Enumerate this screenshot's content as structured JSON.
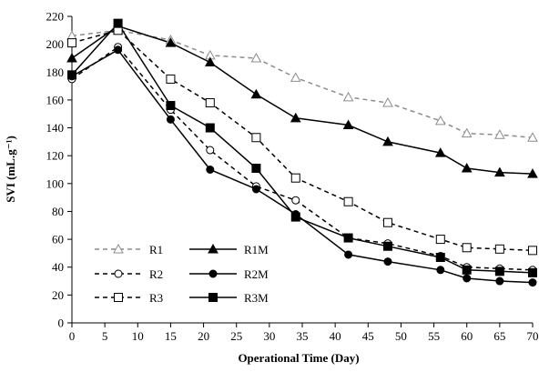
{
  "chart_data": {
    "type": "line",
    "title": "",
    "xlabel": "Operational Time (Day)",
    "ylabel": "SVI (mL.g⁻¹)",
    "xlim": [
      0,
      70
    ],
    "ylim": [
      0,
      220
    ],
    "xticks": [
      "0",
      "5",
      "10",
      "15",
      "20",
      "25",
      "30",
      "35",
      "40",
      "45",
      "50",
      "55",
      "60",
      "65",
      "70"
    ],
    "yticks": [
      "0",
      "20",
      "40",
      "60",
      "80",
      "100",
      "120",
      "140",
      "160",
      "180",
      "200",
      "220"
    ],
    "grid": false,
    "legend_position": "bottom-left",
    "series": [
      {
        "name": "R1",
        "marker": "triangle-open",
        "dashed": true,
        "color": "#8c8c8c",
        "x": [
          0,
          7,
          15,
          21,
          28,
          34,
          42,
          48,
          56,
          60,
          65,
          70
        ],
        "y": [
          206,
          210,
          203,
          192,
          190,
          176,
          162,
          158,
          145,
          136,
          135,
          133
        ]
      },
      {
        "name": "R1M",
        "marker": "triangle-filled",
        "dashed": false,
        "color": "#000000",
        "x": [
          0,
          7,
          15,
          21,
          28,
          34,
          42,
          48,
          56,
          60,
          65,
          70
        ],
        "y": [
          190,
          213,
          201,
          187,
          164,
          147,
          142,
          130,
          122,
          111,
          108,
          107
        ]
      },
      {
        "name": "R2",
        "marker": "circle-open",
        "dashed": true,
        "color": "#000000",
        "x": [
          0,
          7,
          15,
          21,
          28,
          34,
          42,
          48,
          56,
          60,
          65,
          70
        ],
        "y": [
          175,
          198,
          153,
          124,
          98,
          88,
          61,
          57,
          48,
          40,
          39,
          38
        ]
      },
      {
        "name": "R2M",
        "marker": "circle-filled",
        "dashed": false,
        "color": "#000000",
        "x": [
          0,
          7,
          15,
          21,
          28,
          34,
          42,
          48,
          56,
          60,
          65,
          70
        ],
        "y": [
          177,
          196,
          146,
          110,
          96,
          78,
          49,
          44,
          38,
          32,
          30,
          29
        ]
      },
      {
        "name": "R3",
        "marker": "square-open",
        "dashed": true,
        "color": "#000000",
        "x": [
          0,
          7,
          15,
          21,
          28,
          34,
          42,
          48,
          56,
          60,
          65,
          70
        ],
        "y": [
          201,
          210,
          175,
          158,
          133,
          104,
          87,
          72,
          60,
          54,
          53,
          52
        ]
      },
      {
        "name": "R3M",
        "marker": "square-filled",
        "dashed": false,
        "color": "#000000",
        "x": [
          0,
          7,
          15,
          21,
          28,
          34,
          42,
          48,
          56,
          60,
          65,
          70
        ],
        "y": [
          178,
          215,
          156,
          140,
          111,
          76,
          61,
          55,
          47,
          38,
          37,
          36
        ]
      }
    ]
  }
}
